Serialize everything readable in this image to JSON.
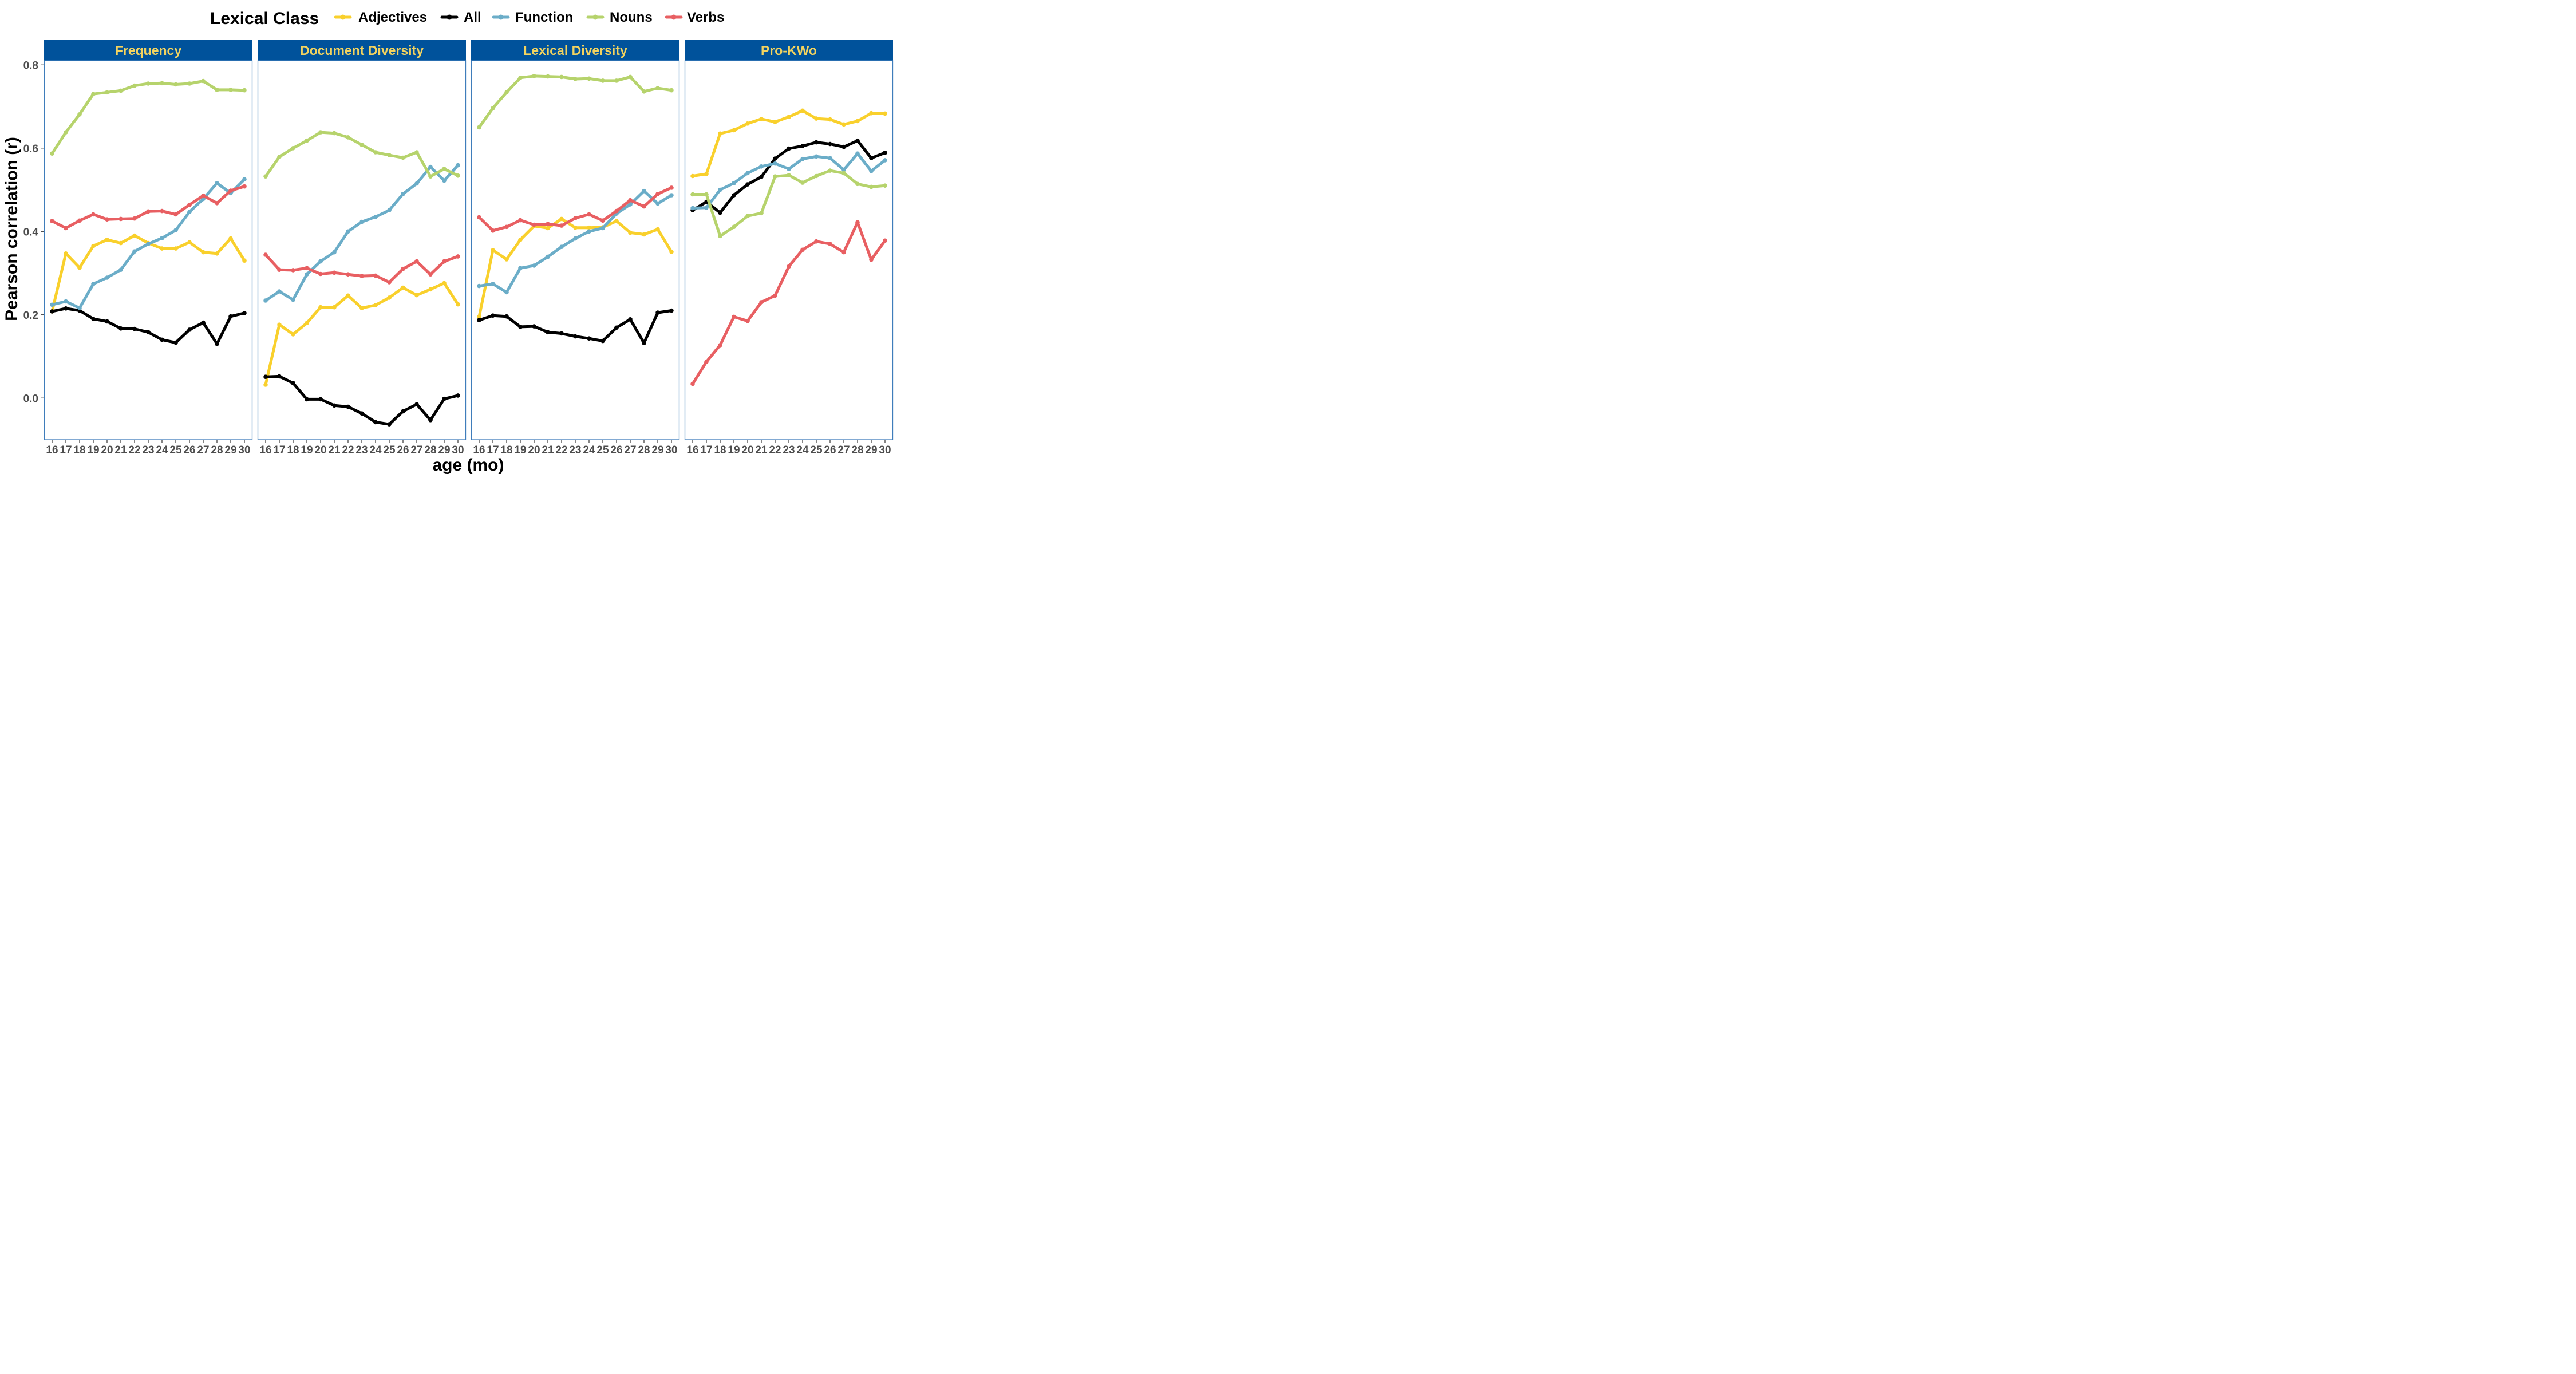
{
  "chart_data": {
    "type": "line",
    "ylabel": "Pearson correlation (r)",
    "xlabel": "age (mo)",
    "ylim": [
      -0.1,
      0.81
    ],
    "yticks": [
      0.0,
      0.2,
      0.4,
      0.6,
      0.8
    ],
    "ytick_labels": [
      "0.0",
      "0.2",
      "0.4",
      "0.6",
      "0.8"
    ],
    "x": [
      16,
      17,
      18,
      19,
      20,
      21,
      22,
      23,
      24,
      25,
      26,
      27,
      28,
      29,
      30
    ],
    "x_tick_labels": [
      "16",
      "17",
      "18",
      "19",
      "20",
      "21",
      "22",
      "23",
      "24",
      "25",
      "26",
      "27",
      "28",
      "29",
      "30"
    ],
    "grid": false,
    "legend": {
      "title": "Lexical Class",
      "position": "top",
      "entries": [
        "Adjectives",
        "All",
        "Function",
        "Nouns",
        "Verbs"
      ]
    },
    "series_colors": {
      "Adjectives": "#F9D02C",
      "All": "#000000",
      "Function": "#6BADC8",
      "Nouns": "#B6D36C",
      "Verbs": "#E85F62"
    },
    "strip_color": "#00529B",
    "strip_text_color": "#F3D35F",
    "panel_border_color": "#3F7DBB",
    "panels": [
      {
        "title": "Frequency",
        "series": [
          {
            "name": "Adjectives",
            "values": [
              0.208,
              0.347,
              0.313,
              0.365,
              0.38,
              0.372,
              0.39,
              0.372,
              0.359,
              0.359,
              0.374,
              0.35,
              0.347,
              0.383,
              0.33
            ]
          },
          {
            "name": "All",
            "values": [
              0.208,
              0.215,
              0.21,
              0.19,
              0.184,
              0.167,
              0.166,
              0.158,
              0.14,
              0.133,
              0.164,
              0.181,
              0.13,
              0.196,
              0.204
            ]
          },
          {
            "name": "Function",
            "values": [
              0.224,
              0.232,
              0.216,
              0.274,
              0.289,
              0.308,
              0.352,
              0.37,
              0.384,
              0.403,
              0.447,
              0.478,
              0.516,
              0.492,
              0.525
            ]
          },
          {
            "name": "Nouns",
            "values": [
              0.587,
              0.638,
              0.681,
              0.73,
              0.734,
              0.738,
              0.75,
              0.755,
              0.756,
              0.753,
              0.755,
              0.761,
              0.74,
              0.74,
              0.739
            ]
          },
          {
            "name": "Verbs",
            "values": [
              0.425,
              0.408,
              0.426,
              0.441,
              0.429,
              0.43,
              0.431,
              0.448,
              0.449,
              0.441,
              0.464,
              0.486,
              0.468,
              0.498,
              0.508
            ]
          }
        ]
      },
      {
        "title": "Document Diversity",
        "series": [
          {
            "name": "Adjectives",
            "values": [
              0.032,
              0.176,
              0.153,
              0.18,
              0.218,
              0.218,
              0.246,
              0.216,
              0.223,
              0.241,
              0.265,
              0.247,
              0.261,
              0.276,
              0.225
            ]
          },
          {
            "name": "All",
            "values": [
              0.051,
              0.052,
              0.036,
              -0.003,
              -0.003,
              -0.018,
              -0.021,
              -0.037,
              -0.058,
              -0.063,
              -0.032,
              -0.015,
              -0.053,
              -0.002,
              0.006
            ]
          },
          {
            "name": "Function",
            "values": [
              0.234,
              0.256,
              0.236,
              0.297,
              0.328,
              0.35,
              0.4,
              0.423,
              0.435,
              0.451,
              0.49,
              0.515,
              0.555,
              0.522,
              0.559
            ]
          },
          {
            "name": "Nouns",
            "values": [
              0.532,
              0.579,
              0.6,
              0.618,
              0.638,
              0.636,
              0.626,
              0.608,
              0.59,
              0.583,
              0.577,
              0.59,
              0.532,
              0.55,
              0.534
            ]
          },
          {
            "name": "Verbs",
            "values": [
              0.344,
              0.308,
              0.307,
              0.312,
              0.298,
              0.301,
              0.297,
              0.293,
              0.294,
              0.278,
              0.31,
              0.328,
              0.297,
              0.328,
              0.34
            ]
          }
        ]
      },
      {
        "title": "Lexical Diversity",
        "series": [
          {
            "name": "Adjectives",
            "values": [
              0.195,
              0.355,
              0.333,
              0.38,
              0.413,
              0.408,
              0.43,
              0.409,
              0.409,
              0.41,
              0.425,
              0.397,
              0.393,
              0.405,
              0.351
            ]
          },
          {
            "name": "All",
            "values": [
              0.187,
              0.198,
              0.196,
              0.171,
              0.172,
              0.158,
              0.155,
              0.148,
              0.143,
              0.137,
              0.169,
              0.189,
              0.132,
              0.205,
              0.21
            ]
          },
          {
            "name": "Function",
            "values": [
              0.269,
              0.274,
              0.254,
              0.312,
              0.318,
              0.339,
              0.363,
              0.383,
              0.4,
              0.408,
              0.443,
              0.465,
              0.497,
              0.467,
              0.487
            ]
          },
          {
            "name": "Nouns",
            "values": [
              0.65,
              0.696,
              0.734,
              0.769,
              0.773,
              0.772,
              0.771,
              0.766,
              0.767,
              0.762,
              0.762,
              0.771,
              0.736,
              0.744,
              0.739
            ]
          },
          {
            "name": "Verbs",
            "values": [
              0.434,
              0.402,
              0.411,
              0.427,
              0.416,
              0.418,
              0.414,
              0.432,
              0.441,
              0.426,
              0.449,
              0.475,
              0.46,
              0.49,
              0.505
            ]
          }
        ]
      },
      {
        "title": "Pro-KWo",
        "series": [
          {
            "name": "Adjectives",
            "values": [
              0.533,
              0.538,
              0.635,
              0.643,
              0.659,
              0.67,
              0.663,
              0.675,
              0.69,
              0.671,
              0.669,
              0.657,
              0.665,
              0.684,
              0.683
            ]
          },
          {
            "name": "All",
            "values": [
              0.451,
              0.471,
              0.445,
              0.487,
              0.513,
              0.531,
              0.575,
              0.599,
              0.605,
              0.614,
              0.61,
              0.603,
              0.618,
              0.576,
              0.589
            ]
          },
          {
            "name": "Function",
            "values": [
              0.456,
              0.457,
              0.5,
              0.516,
              0.54,
              0.556,
              0.563,
              0.55,
              0.574,
              0.58,
              0.576,
              0.548,
              0.587,
              0.545,
              0.571
            ]
          },
          {
            "name": "Nouns",
            "values": [
              0.489,
              0.489,
              0.389,
              0.411,
              0.437,
              0.444,
              0.532,
              0.535,
              0.517,
              0.533,
              0.546,
              0.54,
              0.514,
              0.507,
              0.51
            ]
          },
          {
            "name": "Verbs",
            "values": [
              0.034,
              0.087,
              0.127,
              0.195,
              0.185,
              0.23,
              0.246,
              0.316,
              0.356,
              0.376,
              0.37,
              0.35,
              0.422,
              0.332,
              0.378
            ]
          }
        ]
      }
    ]
  }
}
